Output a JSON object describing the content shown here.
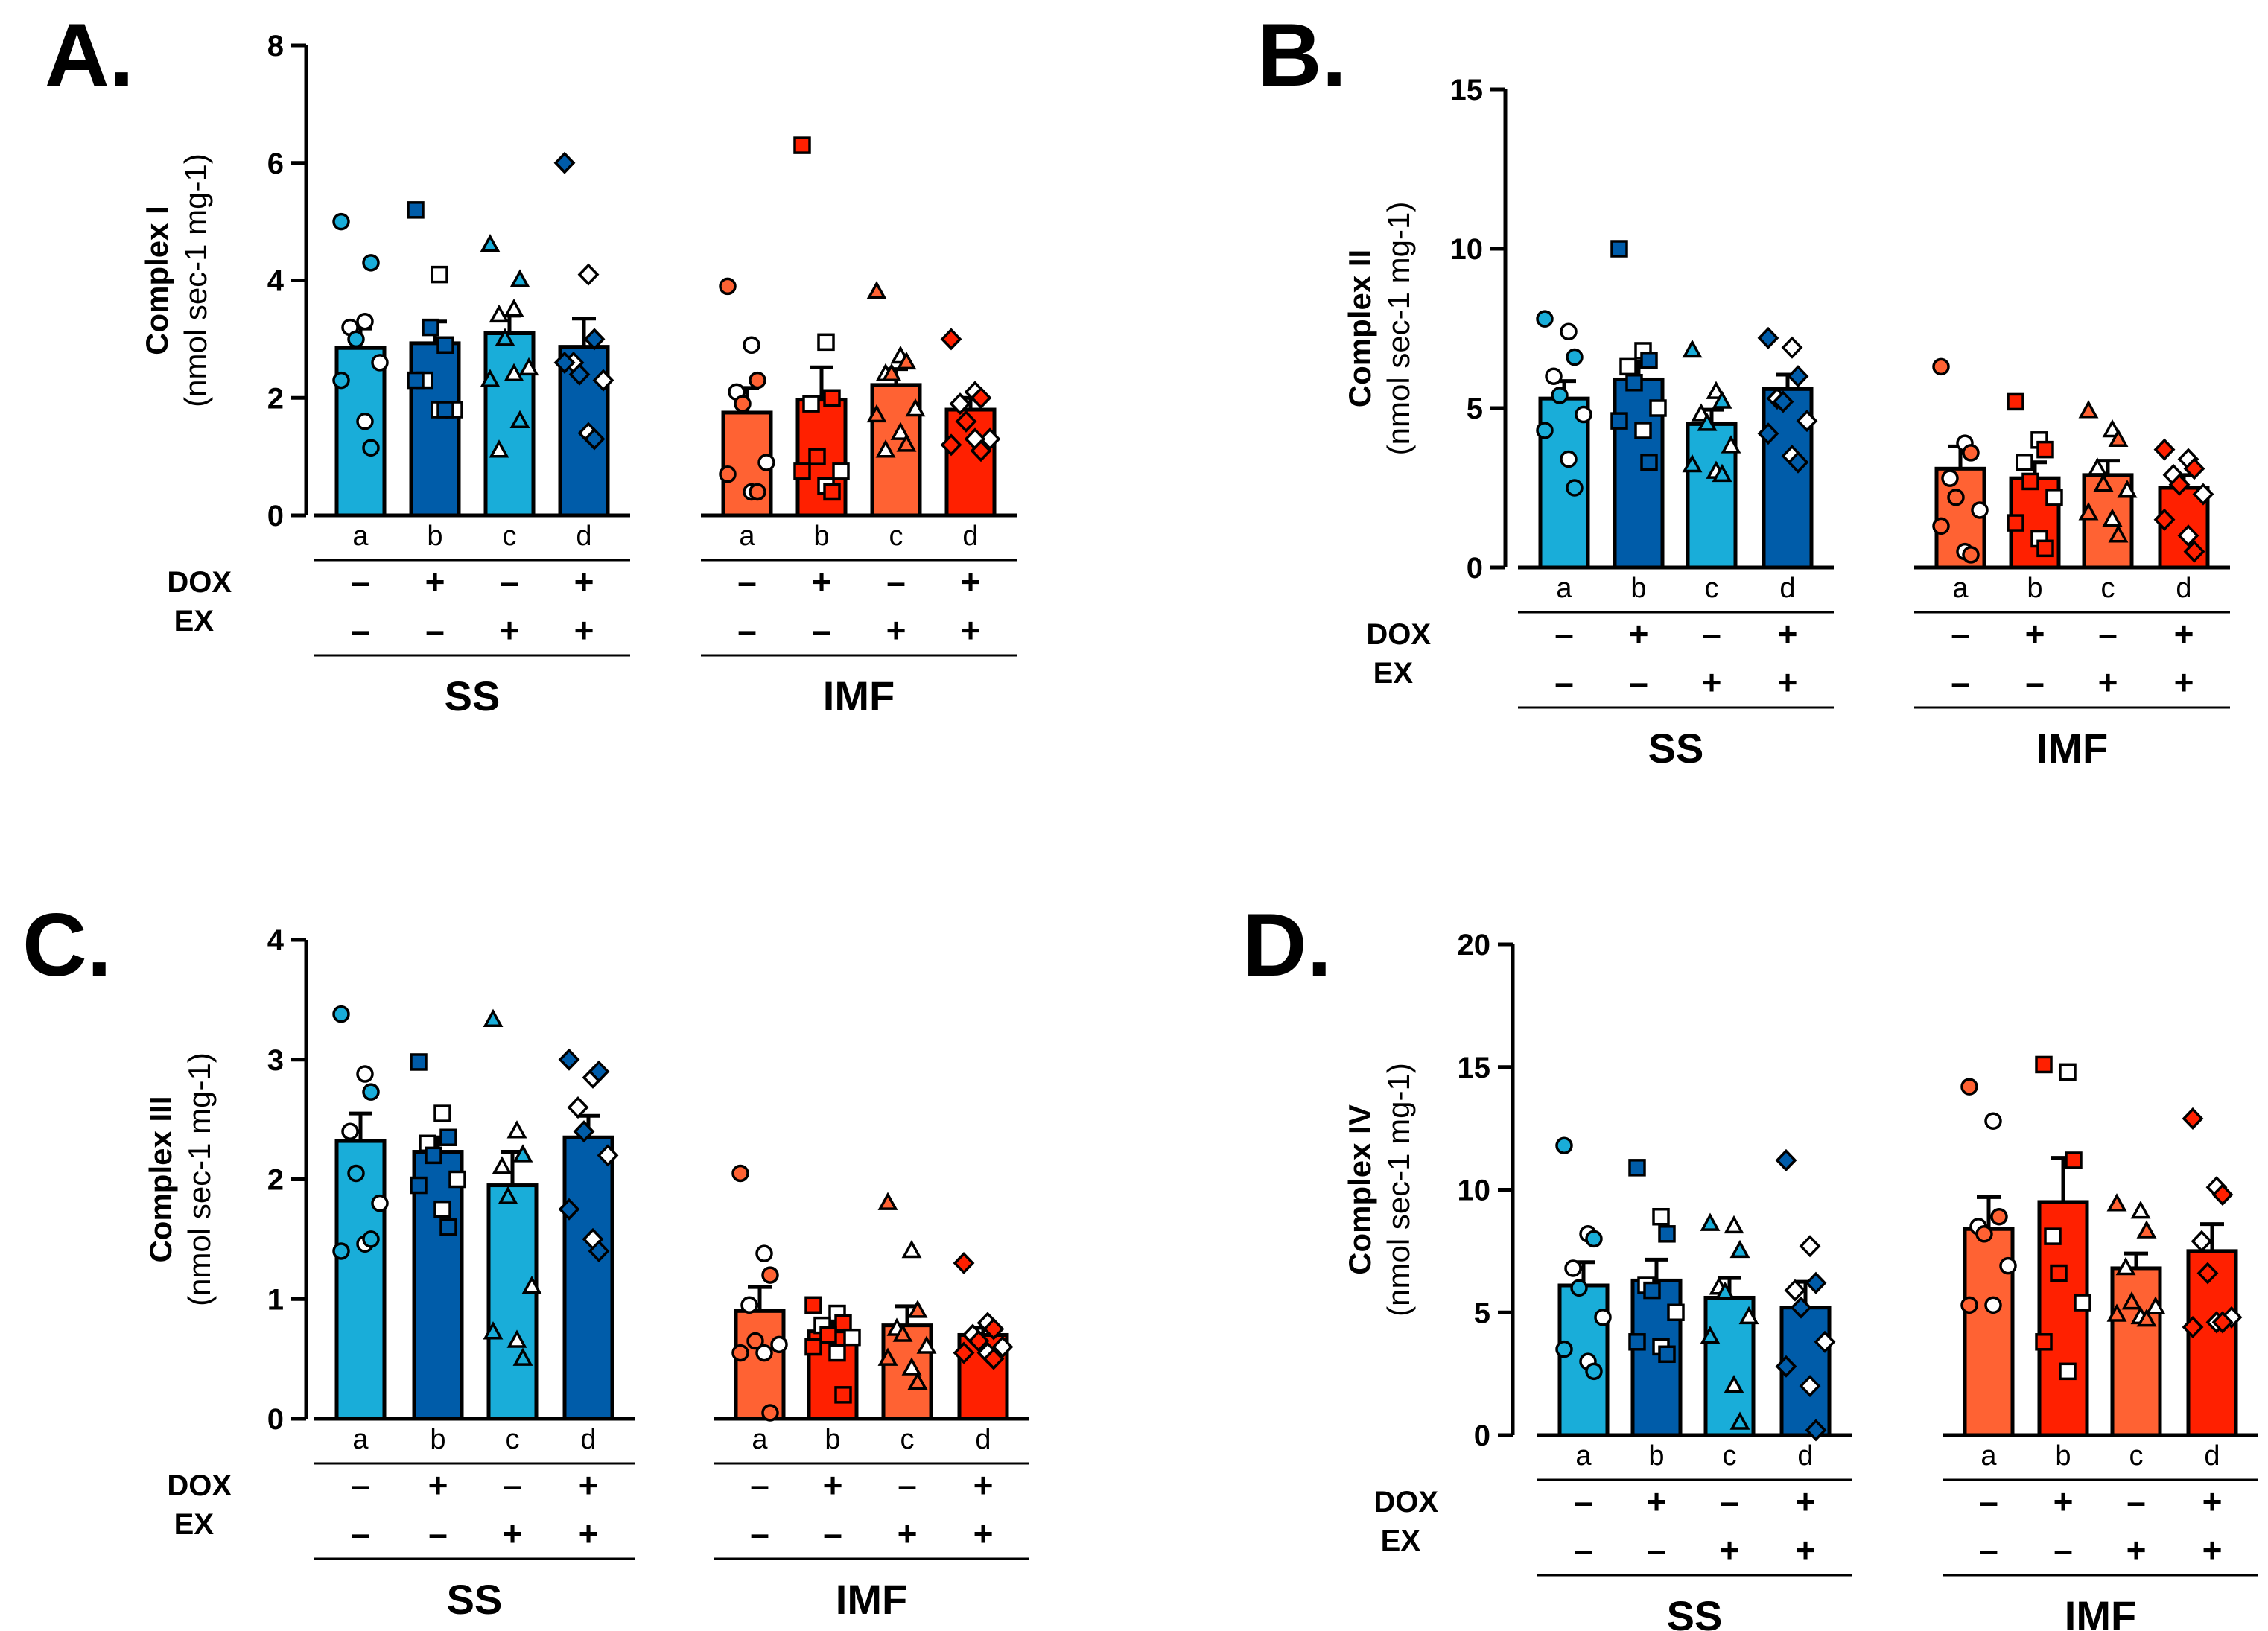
{
  "colors": {
    "ss_light": "#19ADD9",
    "ss_dark": "#005CA9",
    "imf_light": "#FF6233",
    "imf_dark": "#FF2000"
  },
  "shared": {
    "bar_letters": [
      "a",
      "b",
      "c",
      "d"
    ],
    "dox_label": "DOX",
    "ex_label": "EX",
    "dox_signs": [
      "–",
      "+",
      "–",
      "+"
    ],
    "ex_signs": [
      "–",
      "–",
      "+",
      "+"
    ],
    "group_names": [
      "SS",
      "IMF"
    ],
    "ylabel_units": "(nmol sec-1 mg-1)"
  },
  "chart_data": [
    {
      "panel": "A.",
      "type": "bar",
      "ylabel": "Complex I",
      "ylim": [
        0,
        8
      ],
      "yticks": [
        "0",
        "2",
        "4",
        "6",
        "8"
      ],
      "categories": [
        "a",
        "b",
        "c",
        "d"
      ],
      "series": [
        {
          "name": "SS",
          "values": [
            2.85,
            2.93,
            3.1,
            2.87
          ],
          "errors": [
            0.33,
            0.37,
            0.3,
            0.48
          ],
          "points": [
            [
              5.0,
              3.3,
              4.3,
              3.2,
              3.0,
              2.6,
              2.3,
              1.6,
              1.15
            ],
            [
              5.2,
              4.1,
              2.9,
              2.3,
              3.2,
              1.8,
              2.3,
              1.8,
              1.8
            ],
            [
              4.6,
              3.5,
              4.0,
              3.4,
              3.0,
              2.5,
              2.3,
              2.4,
              1.6,
              1.1
            ],
            [
              6.0,
              4.1,
              3.0,
              2.6,
              2.4,
              2.3,
              2.6,
              1.4,
              1.3
            ]
          ]
        },
        {
          "name": "IMF",
          "values": [
            1.75,
            1.97,
            2.22,
            1.8
          ],
          "errors": [
            0.42,
            0.55,
            0.27,
            0.2
          ],
          "points": [
            [
              3.9,
              2.9,
              2.3,
              2.1,
              1.9,
              0.9,
              0.7,
              0.4,
              0.4
            ],
            [
              6.3,
              2.95,
              2.0,
              1.9,
              1.0,
              0.75,
              0.75,
              0.5,
              0.4
            ],
            [
              3.8,
              2.7,
              2.6,
              2.4,
              2.4,
              1.8,
              1.7,
              1.4,
              1.2,
              1.1
            ],
            [
              3.0,
              2.1,
              2.0,
              1.9,
              1.6,
              1.3,
              1.2,
              1.3,
              1.1
            ]
          ]
        }
      ]
    },
    {
      "panel": "B.",
      "type": "bar",
      "ylabel": "Complex II",
      "ylim": [
        0,
        15
      ],
      "yticks": [
        "0",
        "5",
        "10",
        "15"
      ],
      "categories": [
        "a",
        "b",
        "c",
        "d"
      ],
      "series": [
        {
          "name": "SS",
          "values": [
            5.3,
            5.9,
            4.5,
            5.6
          ],
          "errors": [
            0.55,
            0.55,
            0.45,
            0.45
          ],
          "points": [
            [
              7.8,
              7.4,
              6.6,
              6.0,
              5.4,
              4.8,
              4.3,
              3.4,
              2.5
            ],
            [
              10.0,
              6.8,
              6.5,
              6.3,
              5.8,
              5.0,
              4.6,
              4.3,
              3.3
            ],
            [
              6.8,
              5.5,
              5.2,
              4.8,
              4.5,
              3.8,
              3.2,
              3.0,
              2.9
            ],
            [
              7.2,
              6.9,
              6.0,
              5.3,
              5.2,
              4.6,
              4.2,
              3.5,
              3.3
            ]
          ]
        },
        {
          "name": "IMF",
          "values": [
            3.1,
            2.8,
            2.9,
            2.5
          ],
          "errors": [
            0.7,
            0.5,
            0.45,
            0.4
          ],
          "points": [
            [
              6.3,
              3.9,
              3.6,
              2.8,
              2.2,
              1.8,
              1.3,
              0.5,
              0.4
            ],
            [
              5.2,
              4.0,
              3.7,
              3.3,
              2.7,
              2.2,
              1.4,
              0.9,
              0.6
            ],
            [
              4.9,
              4.3,
              4.0,
              3.1,
              2.6,
              2.4,
              1.7,
              1.5,
              1.0
            ],
            [
              3.7,
              3.4,
              3.1,
              2.9,
              2.6,
              2.3,
              1.5,
              1.0,
              0.5
            ]
          ]
        }
      ]
    },
    {
      "panel": "C.",
      "type": "bar",
      "ylabel": "Complex III",
      "ylim": [
        0,
        4
      ],
      "yticks": [
        "0",
        "1",
        "2",
        "3",
        "4"
      ],
      "categories": [
        "a",
        "b",
        "c",
        "d"
      ],
      "series": [
        {
          "name": "SS",
          "values": [
            2.32,
            2.23,
            1.95,
            2.35
          ],
          "errors": [
            0.23,
            0.12,
            0.28,
            0.18
          ],
          "points": [
            [
              3.38,
              2.88,
              2.73,
              2.4,
              2.05,
              1.8,
              1.4,
              1.46,
              1.5
            ],
            [
              2.98,
              2.55,
              2.35,
              2.3,
              2.2,
              2.0,
              1.95,
              1.75,
              1.6
            ],
            [
              3.33,
              2.4,
              2.2,
              2.1,
              1.85,
              1.1,
              0.72,
              0.65,
              0.5
            ],
            [
              3.0,
              2.85,
              2.9,
              2.6,
              2.4,
              2.2,
              1.75,
              1.5,
              1.4
            ]
          ]
        },
        {
          "name": "IMF",
          "values": [
            0.9,
            0.73,
            0.78,
            0.7
          ],
          "errors": [
            0.2,
            0.08,
            0.16,
            0.06
          ],
          "points": [
            [
              2.05,
              1.38,
              1.2,
              0.95,
              0.65,
              0.62,
              0.55,
              0.55,
              0.05
            ],
            [
              0.95,
              0.88,
              0.8,
              0.78,
              0.7,
              0.68,
              0.6,
              0.55,
              0.2
            ],
            [
              1.8,
              1.4,
              0.9,
              0.75,
              0.7,
              0.6,
              0.5,
              0.42,
              0.3
            ],
            [
              1.3,
              0.8,
              0.75,
              0.7,
              0.65,
              0.6,
              0.55,
              0.55,
              0.5
            ]
          ]
        }
      ]
    },
    {
      "panel": "D.",
      "type": "bar",
      "ylabel": "Complex IV",
      "ylim": [
        0,
        20
      ],
      "yticks": [
        "0",
        "5",
        "10",
        "15",
        "20"
      ],
      "categories": [
        "a",
        "b",
        "c",
        "d"
      ],
      "series": [
        {
          "name": "SS",
          "values": [
            6.1,
            6.3,
            5.6,
            5.2
          ],
          "errors": [
            0.95,
            0.85,
            0.8,
            1.05
          ],
          "points": [
            [
              11.8,
              8.2,
              8.0,
              6.8,
              6.0,
              4.8,
              3.5,
              3.0,
              2.6
            ],
            [
              10.9,
              8.9,
              8.2,
              6.1,
              5.9,
              5.0,
              3.8,
              3.6,
              3.3
            ],
            [
              8.6,
              8.5,
              7.5,
              6.0,
              5.8,
              4.8,
              4.0,
              2.0,
              0.5
            ],
            [
              11.2,
              7.7,
              6.2,
              5.9,
              5.2,
              3.8,
              2.8,
              2.0,
              0.2
            ]
          ]
        },
        {
          "name": "IMF",
          "values": [
            8.4,
            9.5,
            6.8,
            7.5
          ],
          "errors": [
            1.3,
            1.8,
            0.6,
            1.1
          ],
          "points": [
            [
              14.2,
              12.8,
              8.9,
              8.5,
              8.2,
              6.9,
              5.3,
              5.3
            ],
            [
              15.1,
              14.8,
              11.2,
              8.1,
              6.6,
              5.4,
              3.8,
              2.6
            ],
            [
              9.4,
              9.1,
              8.3,
              6.8,
              5.4,
              5.2,
              4.9,
              4.8,
              4.7
            ],
            [
              12.9,
              10.1,
              9.8,
              7.9,
              6.6,
              4.8,
              4.4,
              4.6,
              4.6
            ]
          ]
        }
      ]
    }
  ]
}
